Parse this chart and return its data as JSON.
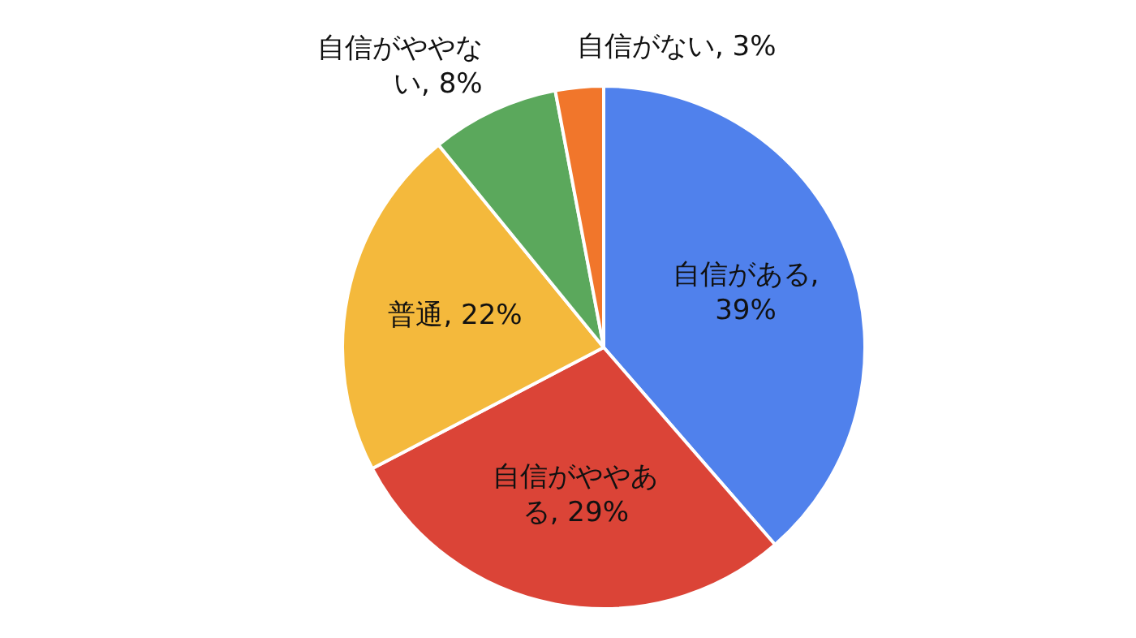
{
  "chart_data": {
    "type": "pie",
    "categories": [
      "自信がある, 39%",
      "自信がややある, 29%",
      "普通, 22%",
      "自信がややない, 8%",
      "自信がない, 3%"
    ],
    "values": [
      39,
      29,
      22,
      8,
      3
    ],
    "colors": [
      "#5081ec",
      "#db4437",
      "#f4b93c",
      "#5ba85c",
      "#f1762b"
    ],
    "legend": false
  }
}
